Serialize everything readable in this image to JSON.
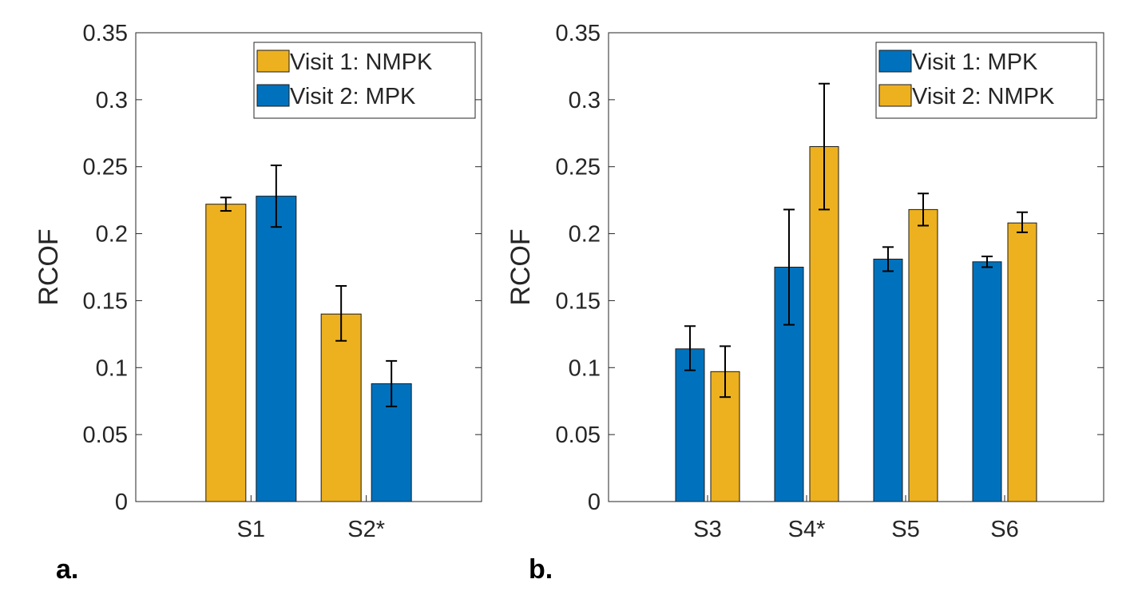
{
  "chart_data": [
    {
      "type": "bar",
      "panel_label": "a.",
      "ylabel": "RCOF",
      "ylim": [
        0,
        0.35
      ],
      "yticks": [
        "0",
        "0.05",
        "0.1",
        "0.15",
        "0.2",
        "0.25",
        "0.3",
        "0.35"
      ],
      "categories": [
        "S1",
        "S2*"
      ],
      "legend_location": "top-right",
      "series": [
        {
          "name": "Visit 1: NMPK",
          "color": "#EDB120",
          "values": [
            0.222,
            0.14
          ],
          "err_low": [
            0.217,
            0.12
          ],
          "err_high": [
            0.227,
            0.161
          ]
        },
        {
          "name": "Visit 2: MPK",
          "color": "#0072BD",
          "values": [
            0.228,
            0.088
          ],
          "err_low": [
            0.205,
            0.071
          ],
          "err_high": [
            0.251,
            0.105
          ]
        }
      ]
    },
    {
      "type": "bar",
      "panel_label": "b.",
      "ylabel": "RCOF",
      "ylim": [
        0,
        0.35
      ],
      "yticks": [
        "0",
        "0.05",
        "0.1",
        "0.15",
        "0.2",
        "0.25",
        "0.3",
        "0.35"
      ],
      "categories": [
        "S3",
        "S4*",
        "S5",
        "S6"
      ],
      "legend_location": "top-right",
      "series": [
        {
          "name": "Visit 1: MPK",
          "color": "#0072BD",
          "values": [
            0.114,
            0.175,
            0.181,
            0.179
          ],
          "err_low": [
            0.098,
            0.132,
            0.172,
            0.175
          ],
          "err_high": [
            0.131,
            0.218,
            0.19,
            0.183
          ]
        },
        {
          "name": "Visit 2: NMPK",
          "color": "#EDB120",
          "values": [
            0.097,
            0.265,
            0.218,
            0.208
          ],
          "err_low": [
            0.078,
            0.218,
            0.206,
            0.201
          ],
          "err_high": [
            0.116,
            0.312,
            0.23,
            0.216
          ]
        }
      ]
    }
  ]
}
